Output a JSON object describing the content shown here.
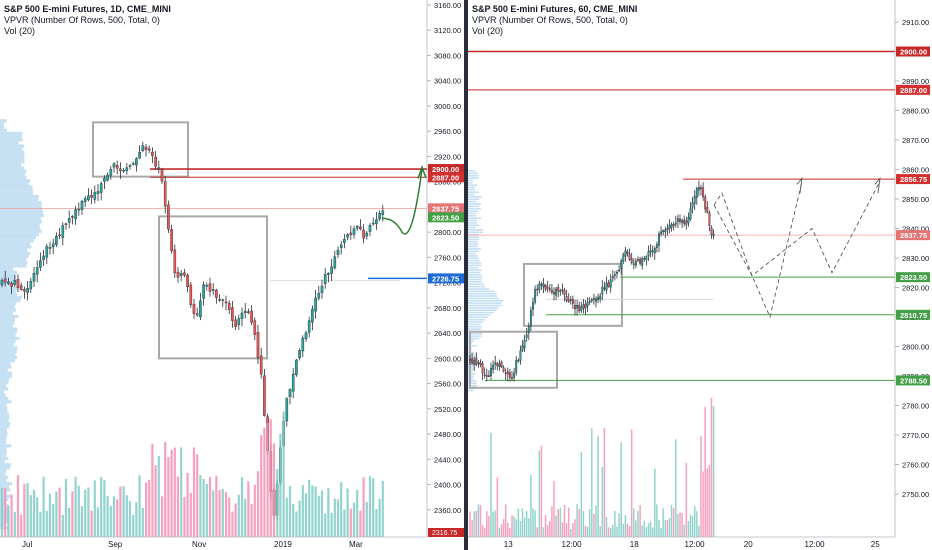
{
  "colors": {
    "up": "#26a69a",
    "down": "#ef5350",
    "vol_up": "#80cbc4",
    "vol_down": "#f48fb1",
    "vpvr": "#bfdcf2",
    "box": "#a8a8a8",
    "red_line": "#c62828",
    "green_line": "#43a047",
    "blue_line": "#1e6bd6",
    "price_line": "#ef9a9a",
    "divider": "#2a2e39"
  },
  "left": {
    "title": "S&P 500 E-mini Futures, 1D, CME_MINI",
    "indicator1": "VPVR (Number Of Rows, 500, Total, 0)",
    "indicator2": "Vol (20)",
    "x_ticks": [
      "Jul",
      "Sep",
      "Nov",
      "2019",
      "Mar"
    ],
    "y_ticks": [
      "3160.00",
      "3120.00",
      "3080.00",
      "3040.00",
      "3000.00",
      "2960.00",
      "2920.00",
      "2880.00",
      "2840.00",
      "2800.00",
      "2760.00",
      "2720.00",
      "2680.00",
      "2640.00",
      "2600.00",
      "2560.00",
      "2520.00",
      "2480.00",
      "2440.00",
      "2400.00",
      "2360.00",
      "2320.00"
    ],
    "labels": {
      "l2900": "2900.00",
      "l2887": "2887.00",
      "l2837": "2837.75",
      "l2823": "2823.50",
      "l2726": "2726.75",
      "l_bottom": "2316.75"
    }
  },
  "right": {
    "title": "S&P 500 E-mini Futures, 60, CME_MINI",
    "indicator1": "VPVR (Number Of Rows, 500, Total, 0)",
    "indicator2": "Vol (20)",
    "x_ticks": [
      "13",
      "12:00",
      "18",
      "12:00",
      "20",
      "12:00",
      "25"
    ],
    "y_ticks": [
      "2910.00",
      "2900.00",
      "2890.00",
      "2880.00",
      "2870.00",
      "2860.00",
      "2850.00",
      "2840.00",
      "2830.00",
      "2820.00",
      "2810.00",
      "2800.00",
      "2790.00",
      "2780.00",
      "2770.00",
      "2760.00",
      "2750.00"
    ],
    "labels": {
      "r2900": "2900.00",
      "r2887": "2887.00",
      "r2856": "2856.75",
      "r2837": "2837.75",
      "r2823": "2823.50",
      "r2810": "2810.75",
      "r2788": "2788.50"
    }
  },
  "chart_data": [
    {
      "type": "candlestick",
      "title": "S&P 500 E-mini Futures, 1D, CME_MINI",
      "x_labels": [
        "Jul",
        "Sep",
        "Nov",
        "2019",
        "Mar"
      ],
      "ylim": [
        2316.75,
        3160
      ],
      "approx_close_path": [
        {
          "date": "Jun",
          "price": 2720
        },
        {
          "date": "Jul",
          "price": 2700
        },
        {
          "date": "Aug",
          "price": 2840
        },
        {
          "date": "Sep",
          "price": 2915
        },
        {
          "date": "Oct (early)",
          "price": 2900
        },
        {
          "date": "Oct (late)",
          "price": 2700
        },
        {
          "date": "Nov",
          "price": 2740
        },
        {
          "date": "Dec",
          "price": 2640
        },
        {
          "date": "Dec (late)",
          "price": 2330
        },
        {
          "date": "Jan",
          "price": 2600
        },
        {
          "date": "Feb",
          "price": 2780
        },
        {
          "date": "Mar",
          "price": 2837.75
        }
      ],
      "levels": [
        2900.0,
        2887.0,
        2837.75,
        2823.5,
        2726.75,
        2316.75
      ],
      "series": [
        {
          "name": "VPVR (Number Of Rows, 500, Total, 0)"
        },
        {
          "name": "Vol (20)"
        }
      ]
    },
    {
      "type": "candlestick",
      "title": "S&P 500 E-mini Futures, 60, CME_MINI",
      "x_labels": [
        "13",
        "12:00",
        "18",
        "12:00",
        "20",
        "12:00",
        "25"
      ],
      "ylim": [
        2745,
        2915
      ],
      "approx_close_path": [
        {
          "time": "12",
          "price": 2795
        },
        {
          "time": "13",
          "price": 2795
        },
        {
          "time": "13 12:00",
          "price": 2815
        },
        {
          "time": "14",
          "price": 2816
        },
        {
          "time": "15",
          "price": 2815
        },
        {
          "time": "18",
          "price": 2830
        },
        {
          "time": "19",
          "price": 2845
        },
        {
          "time": "19 late",
          "price": 2856.75
        },
        {
          "time": "20",
          "price": 2837.75
        }
      ],
      "levels": [
        2900.0,
        2887.0,
        2856.75,
        2837.75,
        2823.5,
        2810.75,
        2788.5
      ],
      "series": [
        {
          "name": "VPVR (Number Of Rows, 500, Total, 0)"
        },
        {
          "name": "Vol (20)"
        }
      ]
    }
  ]
}
